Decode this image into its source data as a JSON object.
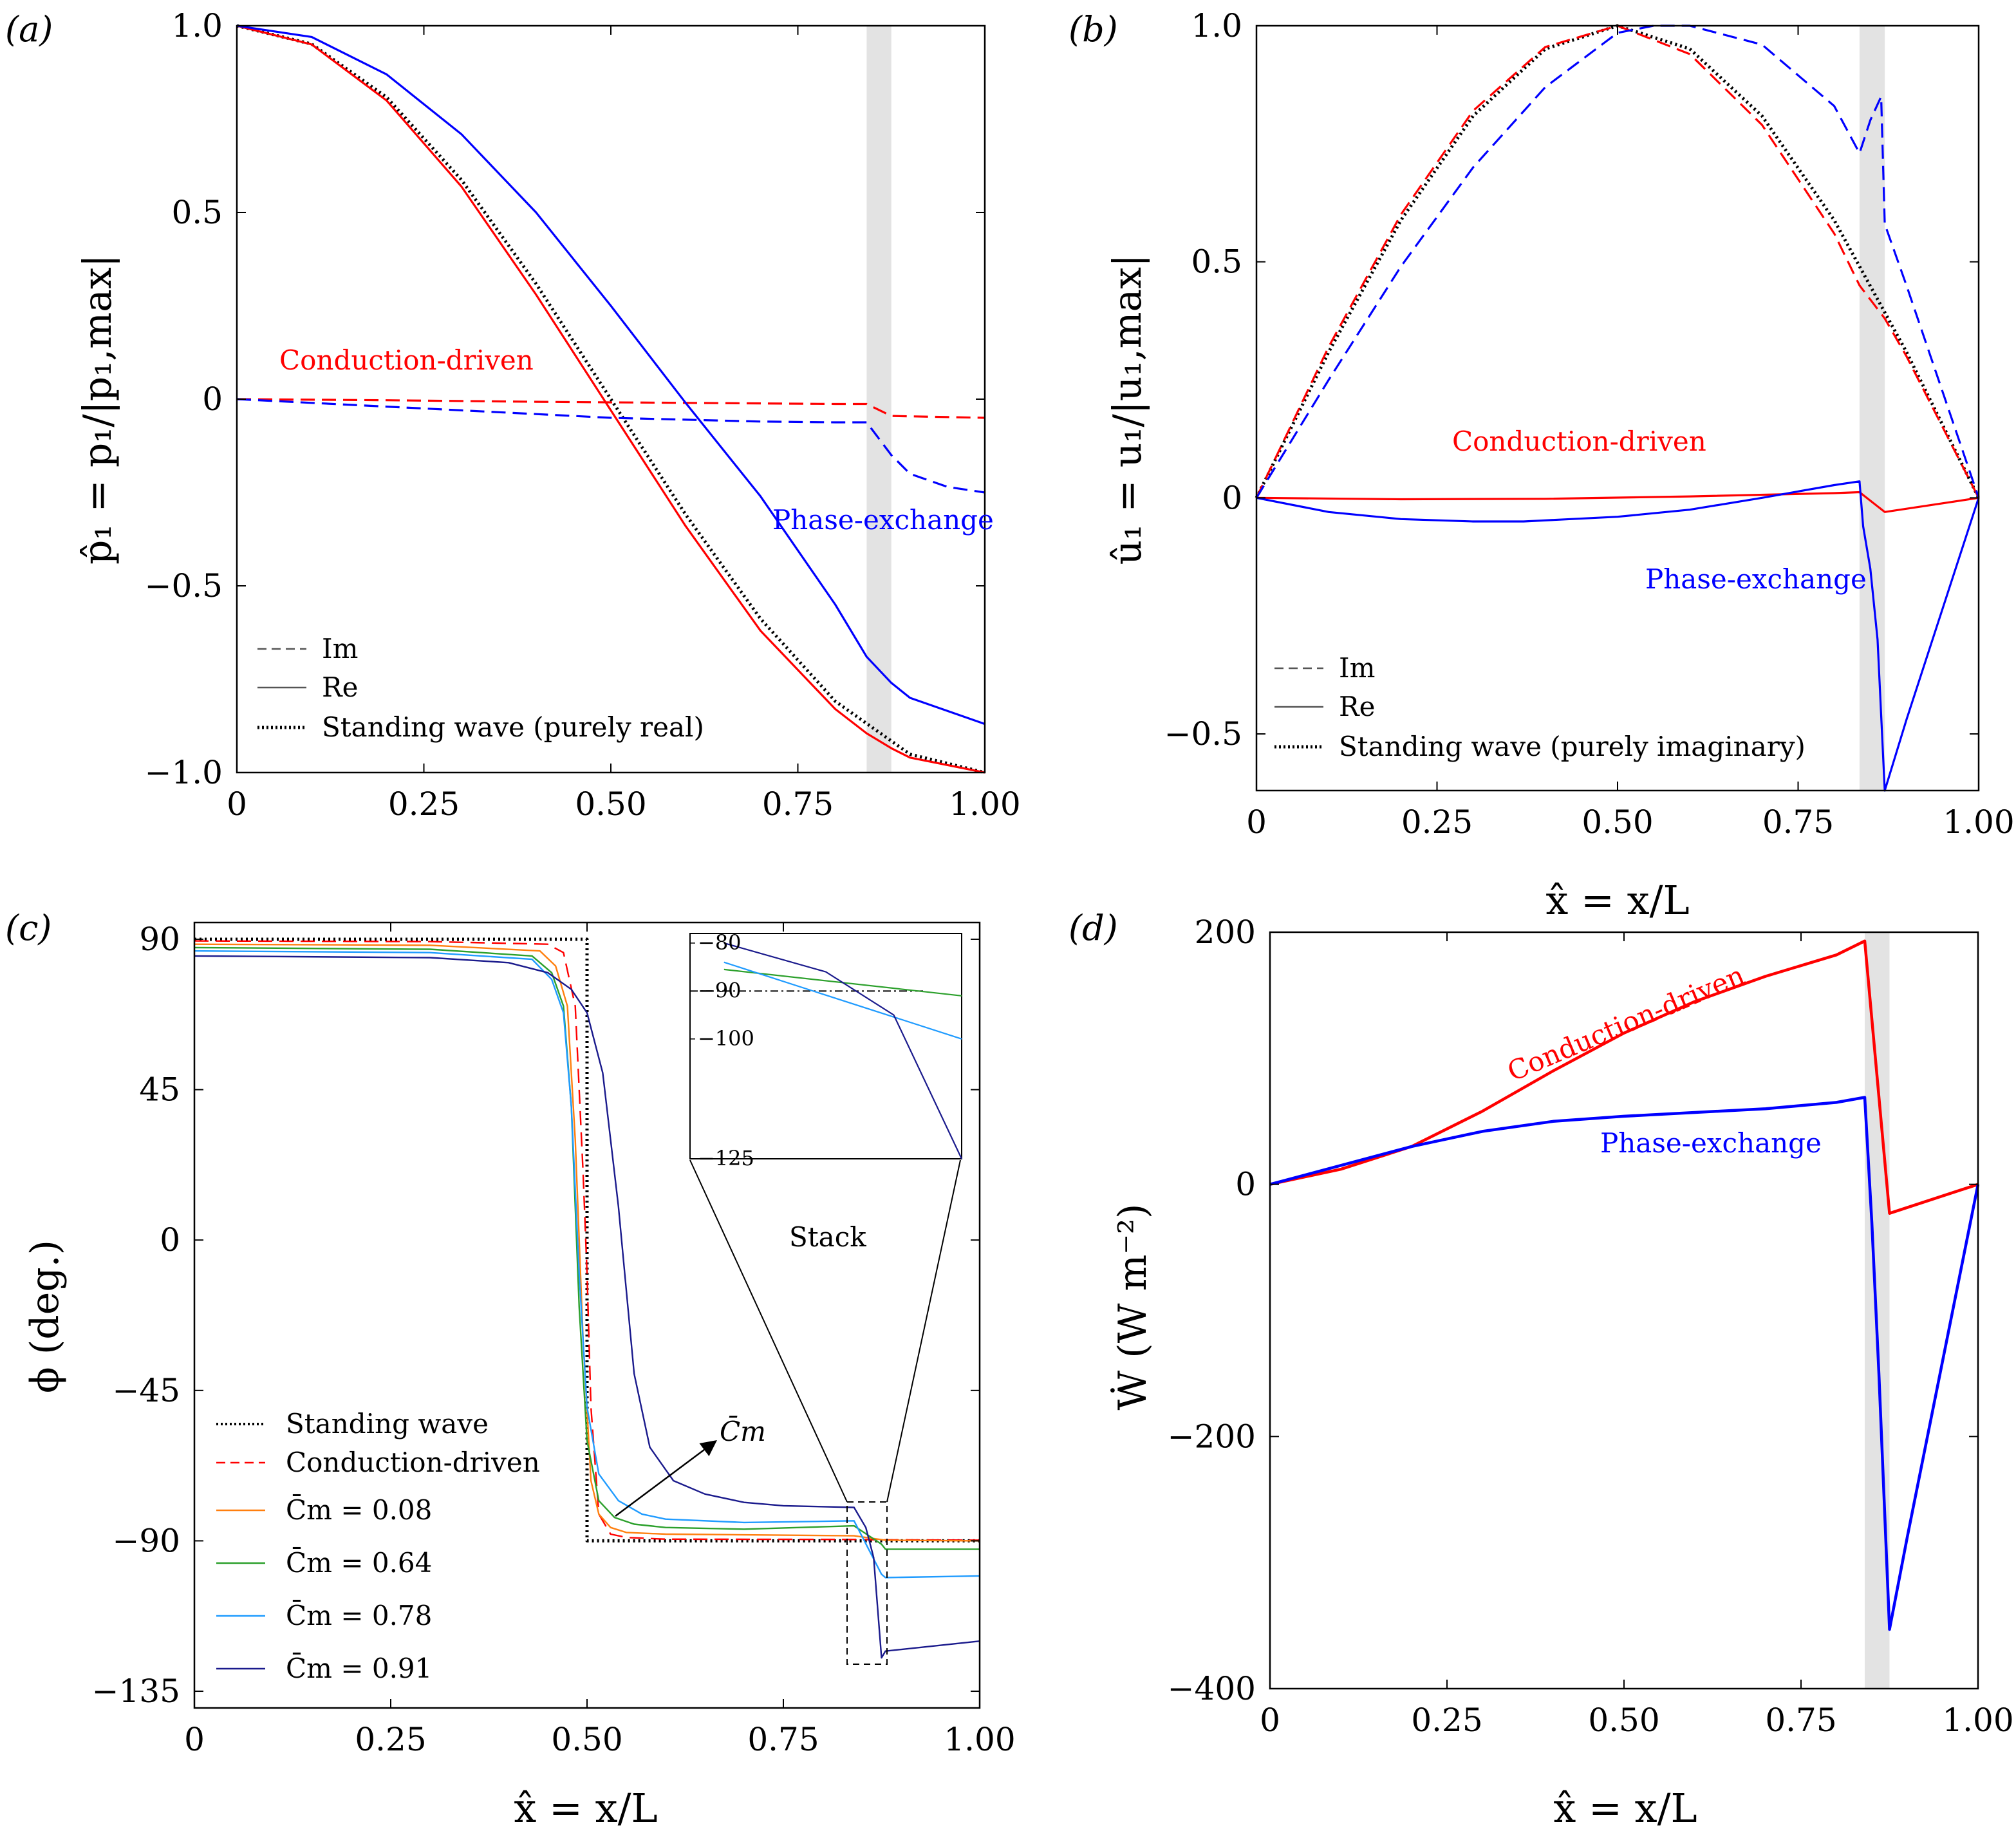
{
  "chart_data": [
    {
      "panel": "(a)",
      "type": "line",
      "xlabel": "x̂ = x/L",
      "ylabel": "p̂₁ = p₁/|p₁,max|",
      "xlim": [
        0,
        1
      ],
      "ylim": [
        -1.0,
        1.0
      ],
      "xticks": [
        "0",
        "0.25",
        "0.50",
        "0.75",
        "1.00"
      ],
      "xtick_values": [
        0,
        0.25,
        0.5,
        0.75,
        1.0
      ],
      "yticks": [
        "1.0",
        "0.5",
        "0",
        "−0.5",
        "−1.0"
      ],
      "ytick_values": [
        1.0,
        0.5,
        0,
        -0.5,
        -1.0
      ],
      "stack_region": [
        0.842,
        0.875
      ],
      "legend": [
        {
          "label": "Im",
          "style": "dashed"
        },
        {
          "label": "Re",
          "style": "solid"
        },
        {
          "label": "Standing wave (purely real)",
          "style": "dotted"
        }
      ],
      "annotations": [
        {
          "text": "Conduction-driven",
          "color": "#ff0000",
          "x": 0.2,
          "y": 0.1
        },
        {
          "text": "Phase-exchange",
          "color": "#0000ff",
          "x": 0.72,
          "y": -0.32
        }
      ],
      "series": [
        {
          "name": "Standing wave",
          "color": "#000000",
          "style": "dotted",
          "x": [
            0,
            0.1,
            0.2,
            0.3,
            0.4,
            0.5,
            0.6,
            0.7,
            0.8,
            0.9,
            1.0
          ],
          "y": [
            1.0,
            0.951,
            0.809,
            0.588,
            0.309,
            0.0,
            -0.309,
            -0.588,
            -0.809,
            -0.951,
            -1.0
          ]
        },
        {
          "name": "Conduction-driven Re",
          "color": "#ff0000",
          "style": "solid",
          "x": [
            0,
            0.1,
            0.2,
            0.3,
            0.4,
            0.5,
            0.6,
            0.7,
            0.8,
            0.842,
            0.875,
            0.9,
            1.0
          ],
          "y": [
            1.0,
            0.95,
            0.8,
            0.57,
            0.28,
            -0.03,
            -0.34,
            -0.62,
            -0.83,
            -0.895,
            -0.935,
            -0.96,
            -1.0
          ]
        },
        {
          "name": "Conduction-driven Im",
          "color": "#ff0000",
          "style": "dashed",
          "x": [
            0,
            0.2,
            0.4,
            0.6,
            0.8,
            0.842,
            0.875,
            0.9,
            1.0
          ],
          "y": [
            0.0,
            -0.003,
            -0.007,
            -0.01,
            -0.013,
            -0.013,
            -0.045,
            -0.046,
            -0.05
          ]
        },
        {
          "name": "Phase-exchange Re",
          "color": "#0000ff",
          "style": "solid",
          "x": [
            0,
            0.1,
            0.2,
            0.3,
            0.4,
            0.5,
            0.6,
            0.7,
            0.8,
            0.842,
            0.875,
            0.9,
            1.0
          ],
          "y": [
            1.0,
            0.97,
            0.87,
            0.71,
            0.5,
            0.25,
            -0.01,
            -0.26,
            -0.55,
            -0.69,
            -0.76,
            -0.8,
            -0.87
          ]
        },
        {
          "name": "Phase-exchange Im",
          "color": "#0000ff",
          "style": "dashed",
          "x": [
            0,
            0.1,
            0.2,
            0.3,
            0.4,
            0.5,
            0.6,
            0.7,
            0.8,
            0.842,
            0.875,
            0.9,
            0.95,
            1.0
          ],
          "y": [
            0.0,
            -0.01,
            -0.02,
            -0.03,
            -0.04,
            -0.05,
            -0.055,
            -0.06,
            -0.062,
            -0.062,
            -0.15,
            -0.2,
            -0.235,
            -0.25
          ]
        }
      ]
    },
    {
      "panel": "(b)",
      "type": "line",
      "xlabel": "",
      "ylabel": "û₁ = u₁/|u₁,max|",
      "xlim": [
        0,
        1
      ],
      "ylim": [
        -0.62,
        1.0
      ],
      "xticks": [
        "0",
        "0.25",
        "0.50",
        "0.75",
        "1.00"
      ],
      "xtick_values": [
        0,
        0.25,
        0.5,
        0.75,
        1.0
      ],
      "yticks": [
        "1.0",
        "0.5",
        "0",
        "−0.5"
      ],
      "ytick_values": [
        1.0,
        0.5,
        0,
        -0.5
      ],
      "stack_region": [
        0.835,
        0.87
      ],
      "legend": [
        {
          "label": "Im",
          "style": "dashed"
        },
        {
          "label": "Re",
          "style": "solid"
        },
        {
          "label": "Standing wave (purely imaginary)",
          "style": "dotted"
        }
      ],
      "annotations": [
        {
          "text": "Conduction-driven",
          "color": "#ff0000",
          "x": 0.44,
          "y": 0.085
        },
        {
          "text": "Phase-exchange",
          "color": "#0000ff",
          "x": 0.53,
          "y": -0.2
        }
      ],
      "series": [
        {
          "name": "Standing wave",
          "color": "#000000",
          "style": "dotted",
          "x": [
            0,
            0.1,
            0.2,
            0.3,
            0.4,
            0.5,
            0.6,
            0.7,
            0.8,
            0.9,
            1.0
          ],
          "y": [
            0.0,
            0.309,
            0.588,
            0.809,
            0.951,
            1.0,
            0.951,
            0.809,
            0.588,
            0.309,
            0.0
          ]
        },
        {
          "name": "Conduction-driven Re",
          "color": "#ff0000",
          "style": "solid",
          "x": [
            0,
            0.2,
            0.4,
            0.6,
            0.8,
            0.835,
            0.87,
            1.0
          ],
          "y": [
            0.0,
            -0.003,
            -0.002,
            0.003,
            0.01,
            0.012,
            -0.03,
            0.0
          ]
        },
        {
          "name": "Conduction-driven Im",
          "color": "#ff0000",
          "style": "dashed",
          "x": [
            0,
            0.1,
            0.2,
            0.3,
            0.4,
            0.5,
            0.6,
            0.7,
            0.8,
            0.835,
            0.87,
            0.9,
            1.0
          ],
          "y": [
            0.0,
            0.32,
            0.6,
            0.82,
            0.955,
            1.0,
            0.94,
            0.79,
            0.56,
            0.45,
            0.38,
            0.3,
            0.0
          ]
        },
        {
          "name": "Phase-exchange Re",
          "color": "#0000ff",
          "style": "solid",
          "x": [
            0,
            0.1,
            0.2,
            0.3,
            0.37,
            0.5,
            0.6,
            0.7,
            0.8,
            0.835,
            0.84,
            0.85,
            0.86,
            0.87,
            0.9,
            1.0
          ],
          "y": [
            0.0,
            -0.03,
            -0.045,
            -0.05,
            -0.05,
            -0.04,
            -0.025,
            0.0,
            0.027,
            0.035,
            -0.06,
            -0.15,
            -0.3,
            -0.62,
            -0.47,
            0.0
          ]
        },
        {
          "name": "Phase-exchange Im",
          "color": "#0000ff",
          "style": "dashed",
          "x": [
            0,
            0.1,
            0.2,
            0.3,
            0.4,
            0.5,
            0.55,
            0.6,
            0.7,
            0.8,
            0.835,
            0.85,
            0.865,
            0.87,
            0.9,
            1.0
          ],
          "y": [
            0.0,
            0.25,
            0.49,
            0.7,
            0.87,
            0.985,
            1.0,
            1.0,
            0.96,
            0.83,
            0.73,
            0.8,
            0.85,
            0.58,
            0.45,
            0.0
          ]
        }
      ]
    },
    {
      "panel": "(c)",
      "type": "line",
      "xlabel": "x̂ = x/L",
      "ylabel": "ϕ (deg.)",
      "xlim": [
        0,
        1
      ],
      "ylim": [
        -140,
        95
      ],
      "xticks": [
        "0",
        "0.25",
        "0.50",
        "0.75",
        "1.00"
      ],
      "xtick_values": [
        0,
        0.25,
        0.5,
        0.75,
        1.0
      ],
      "yticks": [
        "90",
        "45",
        "0",
        "−45",
        "−90",
        "−135"
      ],
      "ytick_values": [
        90,
        45,
        0,
        -45,
        -90,
        -135
      ],
      "legend": [
        {
          "label": "Standing wave",
          "style": "dotted",
          "color": "#000000"
        },
        {
          "label": "Conduction-driven",
          "style": "dashed",
          "color": "#ff0000"
        },
        {
          "label": "C̄m = 0.08",
          "style": "solid",
          "color": "#ff7f0e"
        },
        {
          "label": "C̄m = 0.64",
          "style": "solid",
          "color": "#2ca02c"
        },
        {
          "label": "C̄m = 0.78",
          "style": "solid",
          "color": "#1f9bff"
        },
        {
          "label": "C̄m = 0.91",
          "style": "solid",
          "color": "#1a1a8c"
        }
      ],
      "annotations": [
        {
          "text": "C̄m",
          "color": "#000000"
        },
        {
          "text": "Stack",
          "color": "#000000"
        }
      ],
      "inset": {
        "xlim": [
          0.835,
          0.875
        ],
        "ylim": [
          -125,
          -78
        ],
        "yticks": [
          "−80",
          "−90",
          "−100",
          "−125"
        ],
        "ytick_values": [
          -80,
          -90,
          -100,
          -125
        ]
      },
      "series": [
        {
          "name": "Standing wave",
          "color": "#000000",
          "style": "dotted",
          "x": [
            0,
            0.5,
            0.5,
            1.0
          ],
          "y": [
            90,
            90,
            -90,
            -90
          ]
        },
        {
          "name": "Conduction-driven",
          "color": "#ff0000",
          "style": "dashed",
          "x": [
            0,
            0.3,
            0.45,
            0.47,
            0.485,
            0.495,
            0.5,
            0.505,
            0.515,
            0.53,
            0.55,
            0.6,
            0.84,
            0.88,
            1.0
          ],
          "y": [
            89.5,
            89.3,
            88.5,
            86,
            70,
            20,
            -10,
            -50,
            -82,
            -88,
            -89,
            -89.5,
            -89.6,
            -89.7,
            -89.8
          ]
        },
        {
          "name": "C̄m = 0.08",
          "color": "#ff7f0e",
          "style": "solid",
          "x": [
            0,
            0.3,
            0.44,
            0.46,
            0.475,
            0.485,
            0.495,
            0.505,
            0.515,
            0.53,
            0.55,
            0.6,
            0.84,
            0.88,
            1.0
          ],
          "y": [
            88.5,
            88.2,
            86.5,
            82,
            70,
            30,
            -30,
            -72,
            -82,
            -86,
            -87.5,
            -88,
            -88.5,
            -89.8,
            -90
          ]
        },
        {
          "name": "C̄m = 0.64",
          "color": "#2ca02c",
          "style": "solid",
          "x": [
            0,
            0.3,
            0.43,
            0.455,
            0.47,
            0.48,
            0.49,
            0.5,
            0.515,
            0.535,
            0.56,
            0.6,
            0.7,
            0.84,
            0.875,
            0.88,
            1.0
          ],
          "y": [
            87.5,
            87,
            85,
            80,
            70,
            40,
            -20,
            -60,
            -78,
            -83,
            -85,
            -86,
            -86.5,
            -85.5,
            -91,
            -92.5,
            -92.5
          ]
        },
        {
          "name": "C̄m = 0.78",
          "color": "#1f9bff",
          "style": "solid",
          "x": [
            0,
            0.3,
            0.43,
            0.455,
            0.47,
            0.48,
            0.49,
            0.5,
            0.515,
            0.54,
            0.57,
            0.6,
            0.7,
            0.84,
            0.875,
            0.88,
            1.0
          ],
          "y": [
            86.5,
            86,
            84,
            78,
            68,
            40,
            -10,
            -50,
            -70,
            -78,
            -82,
            -83.5,
            -84.5,
            -84,
            -100,
            -101,
            -100.5
          ]
        },
        {
          "name": "C̄m = 0.91",
          "color": "#1a1a8c",
          "style": "solid",
          "x": [
            0,
            0.3,
            0.4,
            0.45,
            0.48,
            0.5,
            0.52,
            0.54,
            0.56,
            0.58,
            0.61,
            0.65,
            0.7,
            0.75,
            0.84,
            0.855,
            0.865,
            0.875,
            0.88,
            1.0
          ],
          "y": [
            85,
            84.5,
            83,
            80,
            75,
            68,
            50,
            10,
            -40,
            -62,
            -72,
            -76,
            -78.5,
            -79.5,
            -80,
            -86,
            -95,
            -125,
            -123,
            -120
          ]
        }
      ]
    },
    {
      "panel": "(d)",
      "type": "line",
      "xlabel": "x̂ = x/L",
      "ylabel": "Ẇ (W m⁻²)",
      "xlim": [
        0,
        1
      ],
      "ylim": [
        -400,
        200
      ],
      "xticks": [
        "0",
        "0.25",
        "0.50",
        "0.75",
        "1.00"
      ],
      "xtick_values": [
        0,
        0.25,
        0.5,
        0.75,
        1.0
      ],
      "yticks": [
        "200",
        "0",
        "−200",
        "−400"
      ],
      "ytick_values": [
        200,
        0,
        -200,
        -400
      ],
      "stack_region": [
        0.84,
        0.875
      ],
      "annotations": [
        {
          "text": "Conduction-driven",
          "color": "#ff0000"
        },
        {
          "text": "Phase-exchange",
          "color": "#0000ff"
        }
      ],
      "series": [
        {
          "name": "Conduction-driven",
          "color": "#ff0000",
          "style": "solid",
          "x": [
            0,
            0.1,
            0.2,
            0.3,
            0.4,
            0.5,
            0.6,
            0.7,
            0.8,
            0.84,
            0.875,
            1.0
          ],
          "y": [
            0,
            12,
            30,
            58,
            90,
            120,
            145,
            165,
            182,
            193,
            -23,
            0
          ]
        },
        {
          "name": "Phase-exchange",
          "color": "#0000ff",
          "style": "solid",
          "x": [
            0,
            0.1,
            0.2,
            0.3,
            0.4,
            0.5,
            0.6,
            0.7,
            0.8,
            0.84,
            0.85,
            0.86,
            0.875,
            0.9,
            1.0
          ],
          "y": [
            0,
            15,
            30,
            42,
            50,
            54,
            57,
            60,
            65,
            69,
            -30,
            -150,
            -353,
            -280,
            0
          ]
        }
      ]
    }
  ]
}
